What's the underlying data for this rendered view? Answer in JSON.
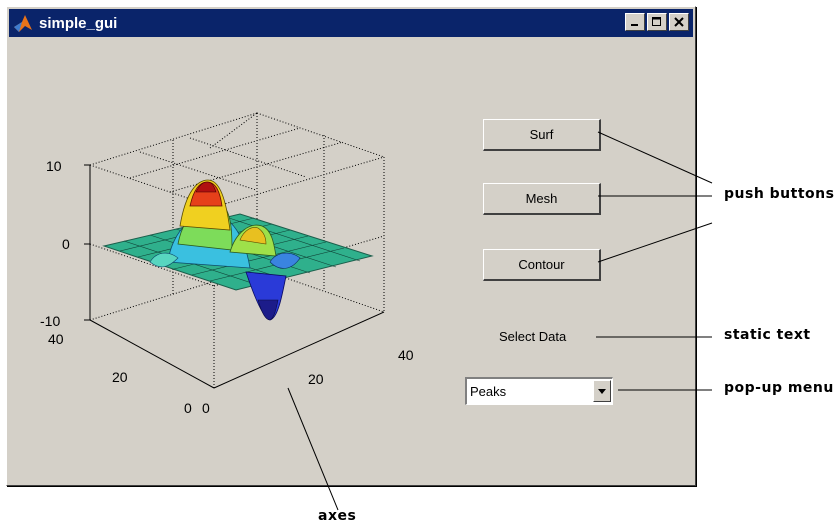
{
  "window": {
    "title": "simple_gui",
    "minimize_icon": "minimize-icon",
    "maximize_icon": "maximize-icon",
    "close_icon": "close-icon",
    "app_icon": "matlab-logo-icon"
  },
  "buttons": {
    "surf": "Surf",
    "mesh": "Mesh",
    "contour": "Contour"
  },
  "static_text": "Select Data",
  "popup": {
    "selected": "Peaks"
  },
  "axes_ticks": {
    "z": [
      "10",
      "0",
      "-10"
    ],
    "y": [
      "40",
      "20",
      "0"
    ],
    "x": [
      "0",
      "20",
      "40"
    ]
  },
  "annotations": {
    "push_buttons": "push buttons",
    "static_text": "static text",
    "popup_menu": "pop-up menu",
    "axes": "axes"
  },
  "colors": {
    "titlebar": "#0a246a",
    "window_bg": "#d4d0c8"
  }
}
